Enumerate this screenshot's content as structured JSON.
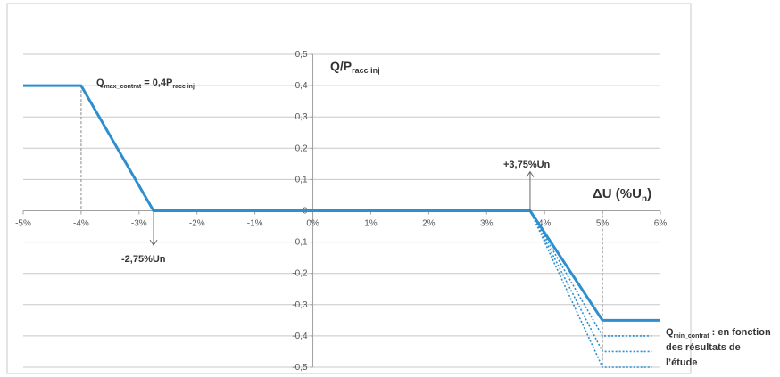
{
  "chart_data": {
    "type": "line",
    "title": "",
    "xlabel": "ΔU (%Un)",
    "ylabel": "Q/Pracc inj",
    "xlim": [
      -5,
      6
    ],
    "ylim": [
      -0.5,
      0.5
    ],
    "grid": true,
    "x_ticks": [
      "-5%",
      "-4%",
      "-3%",
      "-2%",
      "-1%",
      "0%",
      "1%",
      "2%",
      "3%",
      "4%",
      "5%",
      "6%"
    ],
    "y_ticks": [
      "0,5",
      "0,4",
      "0,3",
      "0,2",
      "0,1",
      "0",
      "-0,1",
      "-0,2",
      "-0,3",
      "-0,4",
      "-0,5"
    ],
    "series": [
      {
        "name": "",
        "style": "solid",
        "x": [
          -5,
          -4,
          -2.75,
          3.75,
          5,
          6
        ],
        "y": [
          0.4,
          0.4,
          0,
          0,
          -0.35,
          -0.35
        ]
      },
      {
        "name": "",
        "style": "dotted",
        "x": [
          3.75,
          5,
          5.85
        ],
        "y": [
          0,
          -0.4,
          -0.4
        ]
      },
      {
        "name": "",
        "style": "dotted",
        "x": [
          3.75,
          5,
          5.85
        ],
        "y": [
          0,
          -0.45,
          -0.45
        ]
      },
      {
        "name": "",
        "style": "dotted",
        "x": [
          3.75,
          5,
          5.85
        ],
        "y": [
          0,
          -0.5,
          -0.5
        ]
      }
    ],
    "reference_lines": [
      {
        "x": -4,
        "y_from": 0.4,
        "y_to": 0
      },
      {
        "x": 5,
        "y_from": 0,
        "y_to": -0.5
      }
    ],
    "annotations": {
      "qmax": "Q",
      "qmax_sub": "max_contrat",
      "qmax_rest": " = 0,4P",
      "qmax_sub2": "racc inj",
      "ylabel_main": "Q/P",
      "ylabel_sub": "racc inj",
      "xlabel_main": "ΔU (%U",
      "xlabel_sub": "n",
      "xlabel_end": ")",
      "marker_up": "+3,75%Un",
      "marker_down": "-2,75%Un",
      "qmin": "Q",
      "qmin_sub": "min_contrat",
      "qmin_rest": " : en fonction",
      "qmin_line2": "des résultats de",
      "qmin_line3": "l’étude"
    },
    "colors": {
      "line": "#2e8fcf",
      "grid": "#c8c8c8",
      "axis": "#a0a0a0",
      "arrow": "#666666"
    }
  }
}
